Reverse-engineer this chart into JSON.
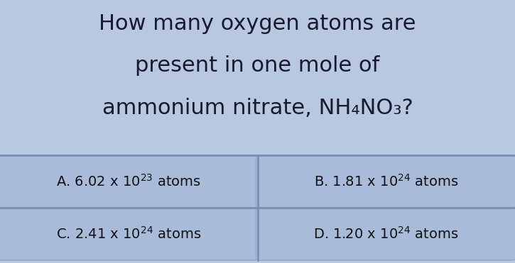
{
  "bg_color": "#b8c8e0",
  "title_lines": [
    "How many oxygen atoms are",
    "present in one mole of",
    "ammonium nitrate, NH₄NO₃?"
  ],
  "title_fontsize": 22,
  "title_color": "#1a1a2e",
  "options": [
    {
      "label": "A.",
      "text": "6.02 x 10",
      "exp": "23",
      "suffix": " atoms",
      "col": 0,
      "row": 0
    },
    {
      "label": "B.",
      "text": "1.81 x 10",
      "exp": "24",
      "suffix": " atoms",
      "col": 1,
      "row": 0
    },
    {
      "label": "C.",
      "text": "2.41 x 10",
      "exp": "24",
      "suffix": " atoms",
      "col": 0,
      "row": 1
    },
    {
      "label": "D.",
      "text": "1.20 x 10",
      "exp": "24",
      "suffix": " atoms",
      "col": 1,
      "row": 1
    }
  ],
  "option_bg": "#a8bcda",
  "option_border": "#8aaac8",
  "option_fontsize": 14,
  "option_text_color": "#111111",
  "separator_color": "#7a90b0"
}
